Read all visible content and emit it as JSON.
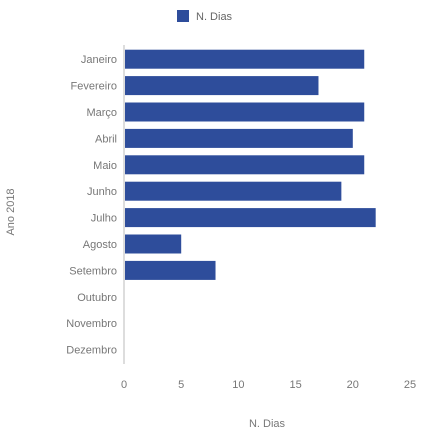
{
  "chart_data": {
    "type": "bar",
    "orientation": "horizontal",
    "categories": [
      "Janeiro",
      "Fevereiro",
      "Março",
      "Abril",
      "Maio",
      "Junho",
      "Julho",
      "Agosto",
      "Setembro",
      "Outubro",
      "Novembro",
      "Dezembro"
    ],
    "series": [
      {
        "name": "N. Dias",
        "values": [
          21,
          17,
          21,
          20,
          21,
          19,
          22,
          5,
          8,
          0,
          0,
          0
        ]
      }
    ],
    "title": "",
    "xlabel": "N. Dias",
    "ylabel": "Ano 2018",
    "xlim": [
      0,
      25
    ],
    "xticks": [
      0,
      5,
      10,
      15,
      20,
      25
    ],
    "grid": false,
    "legend": "top-center",
    "color": "#2e4d9b"
  }
}
